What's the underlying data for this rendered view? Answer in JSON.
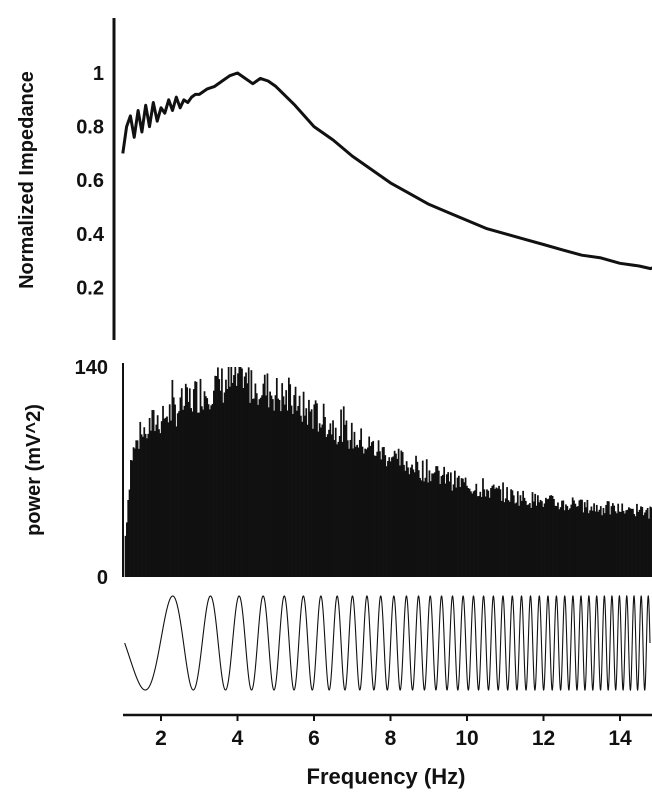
{
  "chart_data": [
    {
      "type": "line",
      "ylabel": "Normalized Impedance",
      "xlabel": "",
      "xlim": [
        1,
        15
      ],
      "ylim": [
        0.05,
        1.2
      ],
      "yticks": [
        "0.2",
        "0.4",
        "0.6",
        "0.8",
        "1"
      ],
      "yticks_values": [
        0.2,
        0.4,
        0.6,
        0.8,
        1.0
      ],
      "grid": false,
      "series": [
        {
          "color": "#111111",
          "x": [
            1.0,
            1.1,
            1.2,
            1.3,
            1.4,
            1.5,
            1.6,
            1.7,
            1.8,
            1.9,
            2.0,
            2.1,
            2.2,
            2.3,
            2.4,
            2.5,
            2.6,
            2.7,
            2.8,
            2.9,
            3.0,
            3.2,
            3.4,
            3.6,
            3.8,
            4.0,
            4.2,
            4.4,
            4.6,
            4.8,
            5.0,
            5.5,
            6.0,
            6.5,
            7.0,
            7.5,
            8.0,
            8.5,
            9.0,
            9.5,
            10.0,
            10.5,
            11.0,
            11.5,
            12.0,
            12.5,
            13.0,
            13.5,
            14.0,
            14.5,
            14.8,
            15.0
          ],
          "y": [
            0.7,
            0.8,
            0.84,
            0.76,
            0.86,
            0.78,
            0.88,
            0.8,
            0.89,
            0.82,
            0.87,
            0.85,
            0.9,
            0.86,
            0.91,
            0.87,
            0.9,
            0.89,
            0.91,
            0.92,
            0.92,
            0.94,
            0.95,
            0.97,
            0.99,
            1.0,
            0.98,
            0.96,
            0.98,
            0.97,
            0.95,
            0.88,
            0.8,
            0.75,
            0.69,
            0.64,
            0.59,
            0.55,
            0.51,
            0.48,
            0.45,
            0.42,
            0.4,
            0.38,
            0.36,
            0.34,
            0.32,
            0.31,
            0.29,
            0.28,
            0.27,
            0.28
          ]
        }
      ]
    },
    {
      "type": "bar",
      "ylabel": "power (mV^2)",
      "xlabel": "",
      "xlim": [
        1,
        15
      ],
      "ylim": [
        0,
        140
      ],
      "yticks": [
        "0",
        "140"
      ],
      "yticks_values": [
        0,
        140
      ],
      "grid": false,
      "bar_color": "#111111",
      "envelope_x": [
        1.0,
        1.2,
        1.4,
        1.6,
        1.8,
        2.0,
        2.5,
        3.0,
        3.5,
        4.0,
        4.5,
        5.0,
        6.0,
        7.0,
        8.0,
        9.0,
        10.0,
        11.0,
        12.0,
        13.0,
        14.0,
        15.0
      ],
      "envelope_y": [
        10,
        80,
        92,
        98,
        103,
        106,
        114,
        123,
        128,
        130,
        128,
        122,
        108,
        93,
        80,
        70,
        61,
        55,
        50,
        47,
        45,
        43
      ]
    },
    {
      "type": "line",
      "xlabel": "Frequency (Hz)",
      "ylabel": "",
      "xlim": [
        1,
        15
      ],
      "ylim": [
        -1,
        1
      ],
      "xticks": [
        "2",
        "4",
        "6",
        "8",
        "10",
        "12",
        "14"
      ],
      "xticks_values": [
        2,
        4,
        6,
        8,
        10,
        12,
        14
      ],
      "grid": false,
      "signal": "chirp stimulus sweeping 1 to 15 Hz",
      "series": [
        {
          "color": "#111111"
        }
      ]
    }
  ]
}
